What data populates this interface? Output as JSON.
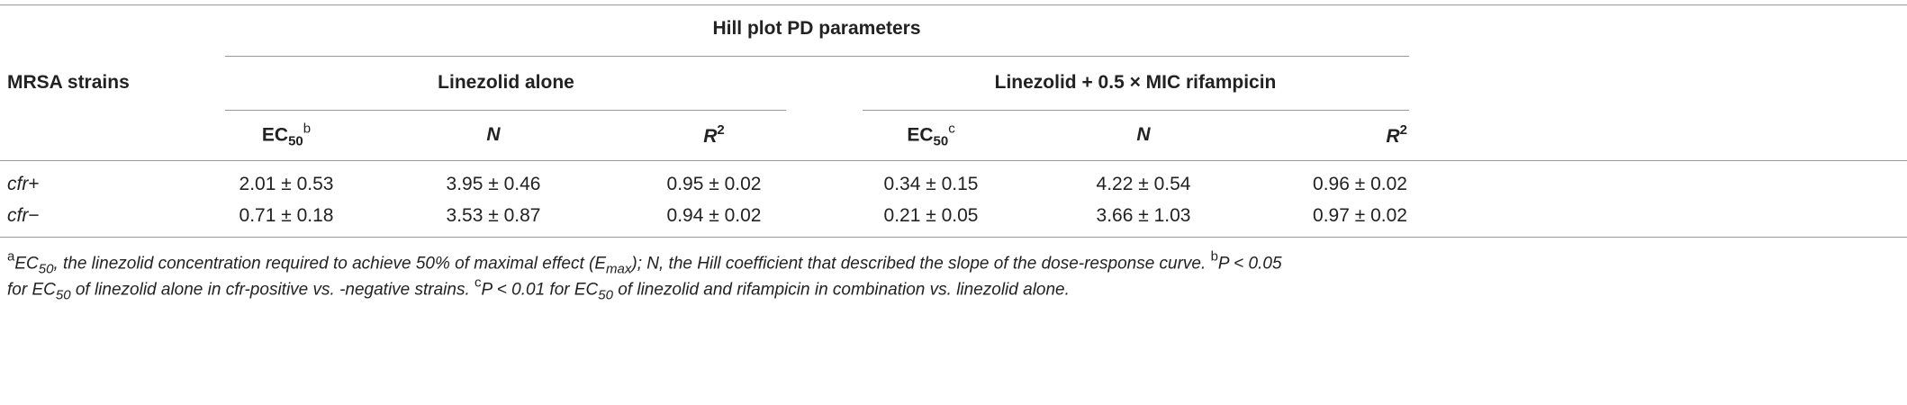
{
  "table": {
    "title": "Hill plot PD parameters",
    "row_header": "MRSA strains",
    "groups": [
      "Linezolid alone",
      "Linezolid + 0.5 × MIC rifampicin"
    ],
    "columns": [
      {
        "parts": [
          {
            "text": "EC",
            "style": "b"
          },
          {
            "text": "50",
            "style": "b-sub"
          },
          {
            "text": "b",
            "style": "sup"
          }
        ]
      },
      {
        "parts": [
          {
            "text": "N",
            "style": "bi"
          }
        ]
      },
      {
        "parts": [
          {
            "text": "R",
            "style": "bi"
          },
          {
            "text": "2",
            "style": "b-sup"
          }
        ]
      },
      {
        "parts": [
          {
            "text": "EC",
            "style": "b"
          },
          {
            "text": "50",
            "style": "b-sub"
          },
          {
            "text": "c",
            "style": "sup"
          }
        ]
      },
      {
        "parts": [
          {
            "text": "N",
            "style": "bi"
          }
        ]
      },
      {
        "parts": [
          {
            "text": "R",
            "style": "bi"
          },
          {
            "text": "2",
            "style": "b-sup"
          }
        ]
      }
    ],
    "rows": [
      {
        "strain": [
          {
            "text": "cfr",
            "style": "i"
          },
          {
            "text": "+",
            "style": "n"
          }
        ],
        "values": [
          "2.01 ± 0.53",
          "3.95 ± 0.46",
          "0.95 ± 0.02",
          "0.34 ± 0.15",
          "4.22 ± 0.54",
          "0.96 ± 0.02"
        ]
      },
      {
        "strain": [
          {
            "text": "cfr",
            "style": "i"
          },
          {
            "text": "−",
            "style": "n"
          }
        ],
        "values": [
          "0.71 ± 0.18",
          "3.53 ± 0.87",
          "0.94 ± 0.02",
          "0.21 ± 0.05",
          "3.66 ± 1.03",
          "0.97 ± 0.02"
        ]
      }
    ]
  },
  "footnotes": [
    [
      {
        "text": "a",
        "style": "sup"
      },
      {
        "text": "EC",
        "style": "i"
      },
      {
        "text": "50",
        "style": "i-sub"
      },
      {
        "text": ", the linezolid concentration required to achieve 50% of maximal effect (E",
        "style": "i"
      },
      {
        "text": "max",
        "style": "i-sub"
      },
      {
        "text": "); N, the Hill coefficient that described the slope of the dose-response curve. ",
        "style": "i"
      },
      {
        "text": "b",
        "style": "sup"
      },
      {
        "text": "P < 0.05",
        "style": "i"
      }
    ],
    [
      {
        "text": "for EC",
        "style": "i"
      },
      {
        "text": "50",
        "style": "i-sub"
      },
      {
        "text": " of linezolid alone in cfr-positive vs. -negative strains. ",
        "style": "i"
      },
      {
        "text": "c",
        "style": "sup"
      },
      {
        "text": "P < 0.01 for EC",
        "style": "i"
      },
      {
        "text": "50",
        "style": "i-sub"
      },
      {
        "text": " of linezolid and rifampicin in combination vs. linezolid alone.",
        "style": "i"
      }
    ]
  ]
}
